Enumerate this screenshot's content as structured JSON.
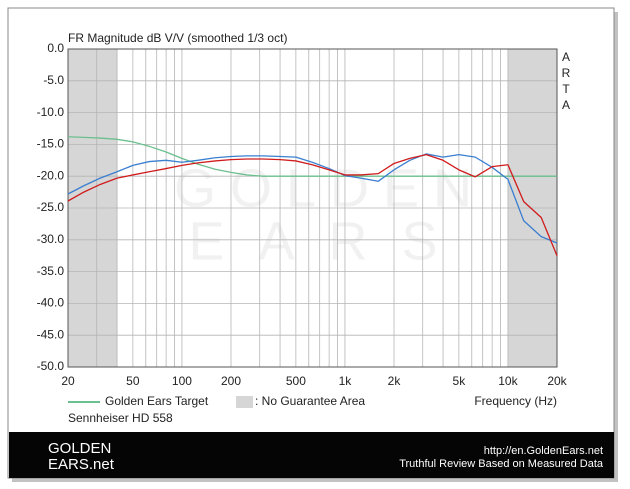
{
  "chart_data": {
    "type": "line",
    "title": "FR Magnitude dB V/V (smoothed 1/3 oct)",
    "software": "ARTA",
    "x_label": "Frequency (Hz)",
    "model": "Sennheiser HD 558",
    "area_label": ": No Guarantee Area",
    "area_color": "#d6d6d6",
    "no_guarantee_areas": [
      [
        20,
        40
      ],
      [
        10000,
        20000
      ]
    ],
    "log_x": true,
    "grid": true,
    "xlim": [
      20,
      20000
    ],
    "ylim": [
      -50,
      0
    ],
    "xticks": [
      20,
      50,
      100,
      200,
      500,
      {
        "value": 1000,
        "label": "1k"
      },
      {
        "value": 2000,
        "label": "2k"
      },
      {
        "value": 5000,
        "label": "5k"
      },
      {
        "value": 10000,
        "label": "10k"
      },
      {
        "value": 20000,
        "label": "20k"
      }
    ],
    "x_minor_ticks": [
      30,
      40,
      60,
      70,
      80,
      90,
      300,
      400,
      600,
      700,
      800,
      900,
      3000,
      4000,
      6000,
      7000,
      8000,
      9000
    ],
    "yticks": [
      {
        "value": 0,
        "label": "0.0"
      },
      {
        "value": -5,
        "label": "-5.0"
      },
      {
        "value": -10,
        "label": "-10.0"
      },
      {
        "value": -15,
        "label": "-15.0"
      },
      {
        "value": -20,
        "label": "-20.0"
      },
      {
        "value": -25,
        "label": "-25.0"
      },
      {
        "value": -30,
        "label": "-30.0"
      },
      {
        "value": -35,
        "label": "-35.0"
      },
      {
        "value": -40,
        "label": "-40.0"
      },
      {
        "value": -45,
        "label": "-45.0"
      },
      {
        "value": -50,
        "label": "-50.0"
      }
    ],
    "x": [
      20,
      25,
      31.5,
      40,
      50,
      63,
      80,
      100,
      125,
      160,
      200,
      250,
      315,
      400,
      500,
      630,
      800,
      1000,
      1250,
      1600,
      2000,
      2500,
      3150,
      4000,
      5000,
      6300,
      8000,
      10000,
      12500,
      16000,
      20000
    ],
    "series": [
      {
        "name": "Golden Ears Target",
        "color": "#6cbf8f",
        "values": [
          -13.8,
          -13.9,
          -14.0,
          -14.2,
          -14.6,
          -15.3,
          -16.2,
          -17.2,
          -18.1,
          -18.9,
          -19.4,
          -19.8,
          -20.0,
          -20.0,
          -20.0,
          -20.0,
          -20.0,
          -20.0,
          -20.0,
          -20.0,
          -20.0,
          -20.0,
          -20.0,
          -20.0,
          -20.0,
          -20.0,
          -20.0,
          -20.0,
          -20.0,
          -20.0,
          -20.0
        ]
      },
      {
        "color": "#3a7fd0",
        "values": [
          -22.8,
          -21.5,
          -20.3,
          -19.3,
          -18.3,
          -17.7,
          -17.5,
          -17.8,
          -17.5,
          -17.1,
          -16.9,
          -16.8,
          -16.8,
          -16.9,
          -17.0,
          -17.8,
          -18.8,
          -19.9,
          -20.3,
          -20.8,
          -19.0,
          -17.5,
          -16.5,
          -17.0,
          -16.6,
          -17.0,
          -18.6,
          -20.5,
          -27.0,
          -29.5,
          -30.5
        ]
      },
      {
        "color": "#d01c1c",
        "values": [
          -23.9,
          -22.5,
          -21.3,
          -20.3,
          -19.8,
          -19.3,
          -18.8,
          -18.3,
          -17.9,
          -17.6,
          -17.4,
          -17.3,
          -17.3,
          -17.4,
          -17.6,
          -18.2,
          -19.0,
          -19.8,
          -19.8,
          -19.6,
          -18.0,
          -17.2,
          -16.6,
          -17.5,
          -19.0,
          -20.1,
          -18.5,
          -18.2,
          -24.0,
          -26.5,
          -32.5
        ]
      }
    ]
  },
  "watermark": {
    "line1": "GOLDEN",
    "line2": "EARS"
  },
  "footer": {
    "logo_top": "GOLDEN",
    "logo_bottom": "EARS.net",
    "url": "http://en.GoldenEars.net",
    "tagline": "Truthful Review Based on Measured Data"
  }
}
